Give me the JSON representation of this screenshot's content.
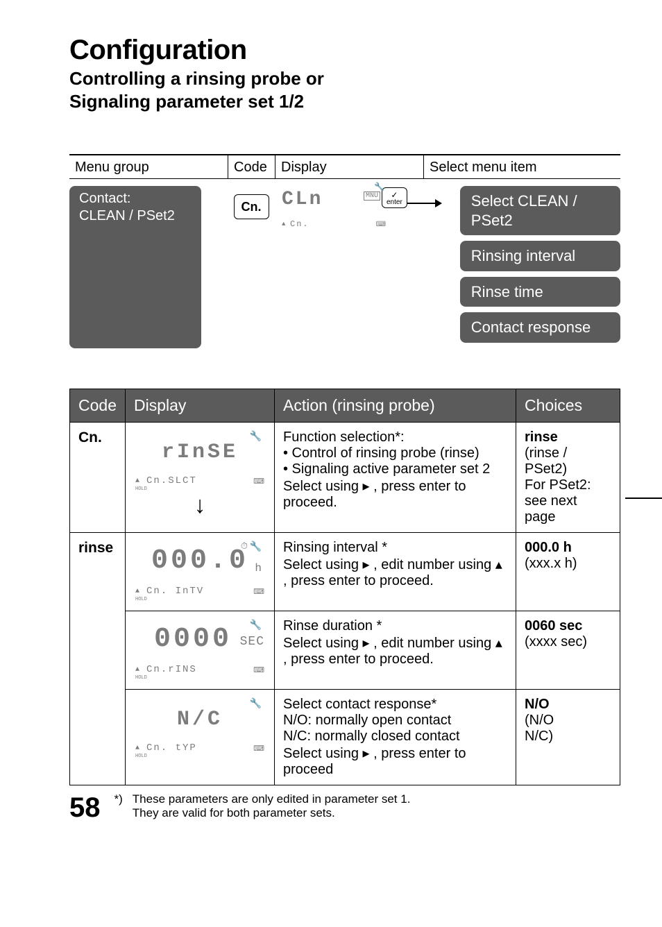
{
  "page": {
    "title": "Configuration",
    "subtitle_line1": "Controlling a rinsing probe or",
    "subtitle_line2": "Signaling parameter set 1/2",
    "number": "58"
  },
  "flow": {
    "headers": {
      "menu_group": "Menu group",
      "code": "Code",
      "display": "Display",
      "select": "Select menu item"
    },
    "contact_node_line1": "Contact:",
    "contact_node_line2": "CLEAN / PSet2",
    "code_value": "Cn.",
    "lcd": {
      "seg": "CLn",
      "mnu": "MNU",
      "sub": "Cn.",
      "tri": "▲",
      "wrench": "🔧",
      "kb": "⌨"
    },
    "enter_label": "enter",
    "right_nodes": [
      "Select CLEAN / PSet2",
      "Rinsing interval",
      "Rinse time",
      "Contact response"
    ]
  },
  "table": {
    "headers": {
      "code": "Code",
      "display": "Display",
      "action": "Action (rinsing probe)",
      "choices": "Choices"
    },
    "rows": {
      "r1": {
        "code": "Cn.",
        "lcd": {
          "seg_text": "rInSE",
          "sub": "Cn.SLCT",
          "tri": "▲",
          "tri_hold": "HOLD",
          "wrench": "🔧",
          "kb": "⌨"
        },
        "action_l1": "Function selection*:",
        "action_l2": "• Control of rinsing probe (rinse)",
        "action_l3": "• Signaling active parameter set 2",
        "action_l4": "Select using  ▸ , press enter to proceed.",
        "choice_l1": "rinse",
        "choice_l2": "(rinse /",
        "choice_l3": "PSet2)",
        "choice_l4": "For PSet2:",
        "choice_l5": "see next",
        "choice_l6": "page"
      },
      "r2": {
        "code": "rinse",
        "lcd": {
          "seg_big": "000.0",
          "unit": "h",
          "sub": "Cn. InTV",
          "tri": "▲",
          "tri_hold": "HOLD",
          "wrench": "🔧",
          "clock": "⏱",
          "kb": "⌨"
        },
        "action_l1": "Rinsing interval *",
        "action_l2": "Select using  ▸ , edit number using ▴ , press enter to proceed.",
        "choice_l1": "000.0 h",
        "choice_l2": "(xxx.x h)"
      },
      "r3": {
        "lcd": {
          "seg_big": "0000",
          "unit_side": "SEC",
          "sub": "Cn.rINS",
          "tri": "▲",
          "tri_hold": "HOLD",
          "wrench": "🔧",
          "kb": "⌨"
        },
        "action_l1": "Rinse duration *",
        "action_l2": "Select using  ▸ , edit number using ▴ , press enter to proceed.",
        "choice_l1": "0060 sec",
        "choice_l2": "(xxxx sec)"
      },
      "r4": {
        "lcd": {
          "seg_text": "N/C",
          "sub": "Cn. tYP",
          "tri": "▲",
          "tri_hold": "HOLD",
          "wrench": "🔧",
          "kb": "⌨"
        },
        "action_l1": "Select contact response*",
        "action_l2": "N/O: normally open contact",
        "action_l3": "N/C: normally closed contact",
        "action_l4": "Select using  ▸ , press enter to proceed",
        "choice_l1": "N/O",
        "choice_l2": "(N/O",
        "choice_l3": "N/C)"
      }
    }
  },
  "footnote": {
    "mark": "*)",
    "line1": "These parameters are only edited in parameter set 1.",
    "line2": "They are valid for both parameter sets."
  }
}
